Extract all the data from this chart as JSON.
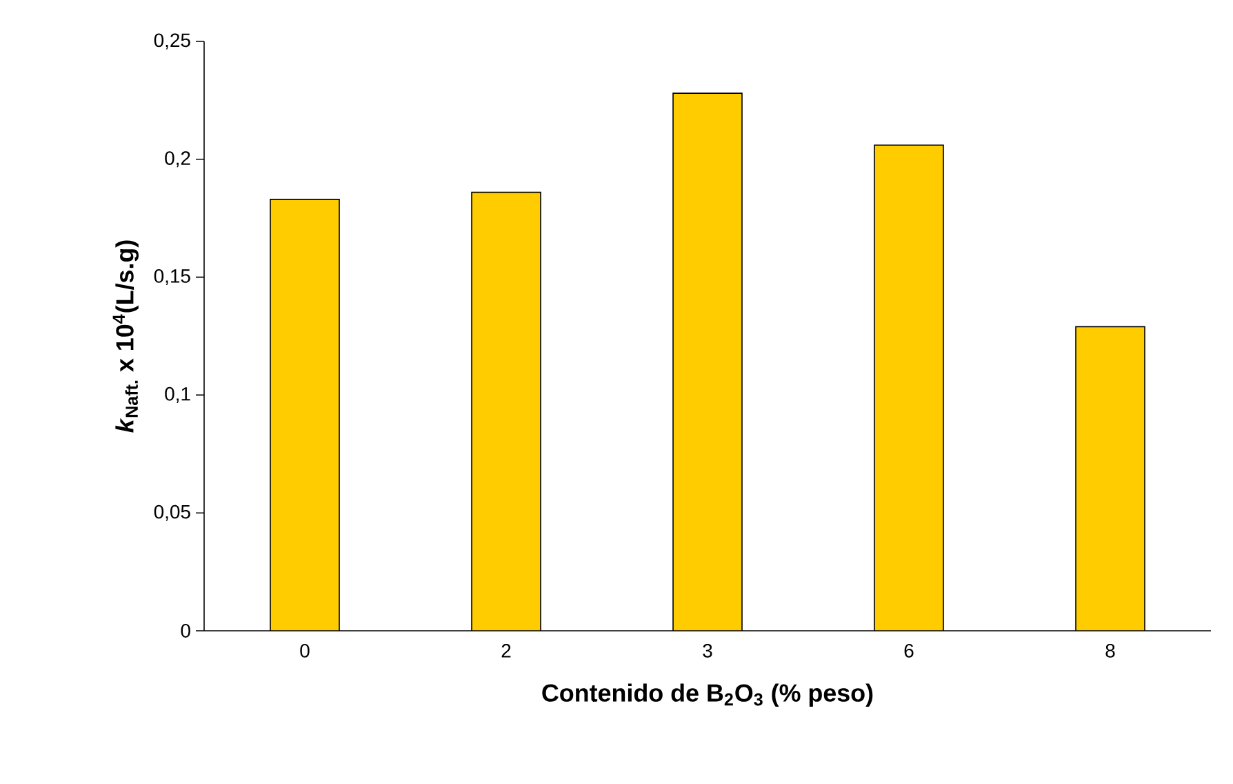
{
  "chart_data": {
    "type": "bar",
    "xlabel": "Contenido de B$_{2}$O$_{3}$ (% peso)",
    "ylabel": "*k*$_{Naft.}$ x 10$^{4}$(L/s.g)",
    "categories": [
      "0",
      "2",
      "3",
      "6",
      "8"
    ],
    "values": [
      0.183,
      0.186,
      0.228,
      0.206,
      0.129
    ],
    "color": "#ffcc00",
    "ylim": [
      0,
      0.25
    ],
    "yticks": [
      0,
      {
        "value": 0.05,
        "label": "0,05"
      },
      {
        "value": 0.1,
        "label": "0,1"
      },
      {
        "value": 0.15,
        "label": "0,15"
      },
      {
        "value": 0.2,
        "label": "0,2"
      },
      {
        "value": 0.25,
        "label": "0,25"
      }
    ],
    "grid": false
  }
}
